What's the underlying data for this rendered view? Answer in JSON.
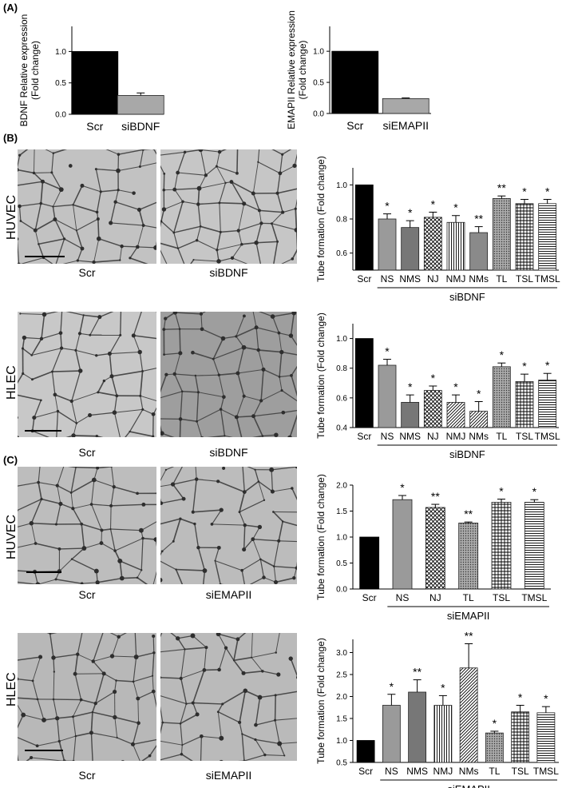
{
  "panels": {
    "A": "(A)",
    "B": "(B)",
    "C": "(C)"
  },
  "rows": {
    "b_huvec": {
      "label": "HUVEC",
      "left": "Scr",
      "right": "siBDNF"
    },
    "b_hlec": {
      "label": "HLEC",
      "left": "Scr",
      "right": "siBDNF"
    },
    "c_huvec": {
      "label": "HUVEC",
      "left": "Scr",
      "right": "siEMAPII"
    },
    "c_hlec": {
      "label": "HLEC",
      "left": "Scr",
      "right": "siEMAPII"
    }
  },
  "chart_data": [
    {
      "id": "a1",
      "type": "bar",
      "ylabel": "BDNF Relative expression\n(Fold change)",
      "categories": [
        "Scr",
        "siBDNF"
      ],
      "values": [
        1.0,
        0.3
      ],
      "errors": [
        0,
        0.04
      ],
      "ylim": [
        0,
        1.4
      ],
      "yticks": [
        "0.0",
        "0.5",
        "1.0"
      ],
      "colors": [
        "#000000",
        "#a8a8a8"
      ],
      "patterns": [
        "solid",
        "solid"
      ],
      "sig": [
        "",
        ""
      ],
      "group_label": ""
    },
    {
      "id": "a2",
      "type": "bar",
      "ylabel": "EMAPII Relative expression\n(Fold change)",
      "categories": [
        "Scr",
        "siEMAPII"
      ],
      "values": [
        1.0,
        0.24
      ],
      "errors": [
        0,
        0.01
      ],
      "ylim": [
        0,
        1.4
      ],
      "yticks": [
        "0.0",
        "0.5",
        "1.0"
      ],
      "colors": [
        "#000000",
        "#a8a8a8"
      ],
      "patterns": [
        "solid",
        "solid"
      ],
      "sig": [
        "",
        ""
      ],
      "group_label": ""
    },
    {
      "id": "b1",
      "type": "bar",
      "ylabel": "Tube formation (Fold change)",
      "categories": [
        "Scr",
        "NS",
        "NMS",
        "NJ",
        "NMJ",
        "NMs",
        "TL",
        "TSL",
        "TMSL"
      ],
      "values": [
        1.0,
        0.8,
        0.75,
        0.81,
        0.78,
        0.72,
        0.92,
        0.89,
        0.89
      ],
      "errors": [
        0,
        0.03,
        0.04,
        0.03,
        0.04,
        0.035,
        0.015,
        0.025,
        0.025
      ],
      "ylim": [
        0.5,
        1.1
      ],
      "yticks": [
        "0.6",
        "0.8",
        "1.0"
      ],
      "colors": [
        "#000000",
        "#9a9a9a",
        "#777777",
        "#ffffff",
        "#ffffff",
        "#8a8a8a",
        "#bbbbbb",
        "#ffffff",
        "#ffffff"
      ],
      "patterns": [
        "solid",
        "solid",
        "solid",
        "cross",
        "vline",
        "solid",
        "dots",
        "grid",
        "hline"
      ],
      "sig": [
        "",
        "*",
        "*",
        "*",
        "*",
        "**",
        "**",
        "*",
        "*"
      ],
      "group_label": "siBDNF"
    },
    {
      "id": "b2",
      "type": "bar",
      "ylabel": "Tube formation (Fold change)",
      "categories": [
        "Scr",
        "NS",
        "NMS",
        "NJ",
        "NMJ",
        "NMs",
        "TL",
        "TSL",
        "TMSL"
      ],
      "values": [
        1.0,
        0.82,
        0.57,
        0.65,
        0.57,
        0.51,
        0.81,
        0.71,
        0.72
      ],
      "errors": [
        0,
        0.04,
        0.05,
        0.03,
        0.05,
        0.065,
        0.025,
        0.05,
        0.045
      ],
      "ylim": [
        0.4,
        1.1
      ],
      "yticks": [
        "0.4",
        "0.6",
        "0.8",
        "1.0"
      ],
      "colors": [
        "#000000",
        "#9a9a9a",
        "#777777",
        "#ffffff",
        "#ffffff",
        "#ffffff",
        "#bbbbbb",
        "#ffffff",
        "#ffffff"
      ],
      "patterns": [
        "solid",
        "solid",
        "solid",
        "cross",
        "diag",
        "diag",
        "dots",
        "grid",
        "hline"
      ],
      "sig": [
        "",
        "*",
        "*",
        "*",
        "*",
        "*",
        "*",
        "*",
        "*"
      ],
      "group_label": "siBDNF"
    },
    {
      "id": "c1",
      "type": "bar",
      "ylabel": "Tube formation (Fold change)",
      "categories": [
        "Scr",
        "NS",
        "NJ",
        "TL",
        "TSL",
        "TMSL"
      ],
      "values": [
        1.0,
        1.72,
        1.57,
        1.27,
        1.67,
        1.67
      ],
      "errors": [
        0,
        0.08,
        0.06,
        0.02,
        0.06,
        0.05
      ],
      "ylim": [
        0,
        2.0
      ],
      "yticks": [
        "0.0",
        "0.5",
        "1.0",
        "1.5",
        "2.0"
      ],
      "colors": [
        "#000000",
        "#9a9a9a",
        "#ffffff",
        "#bbbbbb",
        "#ffffff",
        "#ffffff"
      ],
      "patterns": [
        "solid",
        "solid",
        "cross",
        "dots",
        "grid",
        "hline"
      ],
      "sig": [
        "",
        "*",
        "**",
        "**",
        "*",
        "*"
      ],
      "group_label": "siEMAPII"
    },
    {
      "id": "c2",
      "type": "bar",
      "ylabel": "Tube formation (Fold change)",
      "categories": [
        "Scr",
        "NS",
        "NMS",
        "NMJ",
        "NMs",
        "TL",
        "TSL",
        "TMSL"
      ],
      "values": [
        1.0,
        1.8,
        2.1,
        1.8,
        2.65,
        1.17,
        1.65,
        1.63
      ],
      "errors": [
        0,
        0.25,
        0.28,
        0.22,
        0.55,
        0.04,
        0.15,
        0.14
      ],
      "ylim": [
        0.5,
        3.3
      ],
      "yticks": [
        "0.5",
        "1.0",
        "1.5",
        "2.0",
        "2.5",
        "3.0"
      ],
      "colors": [
        "#000000",
        "#9a9a9a",
        "#777777",
        "#ffffff",
        "#ffffff",
        "#bbbbbb",
        "#ffffff",
        "#ffffff"
      ],
      "patterns": [
        "solid",
        "solid",
        "solid",
        "vline",
        "diag",
        "dots",
        "grid",
        "hline"
      ],
      "sig": [
        "",
        "*",
        "**",
        "*",
        "**",
        "*",
        "*",
        "*"
      ],
      "group_label": "siEMAPII"
    }
  ]
}
